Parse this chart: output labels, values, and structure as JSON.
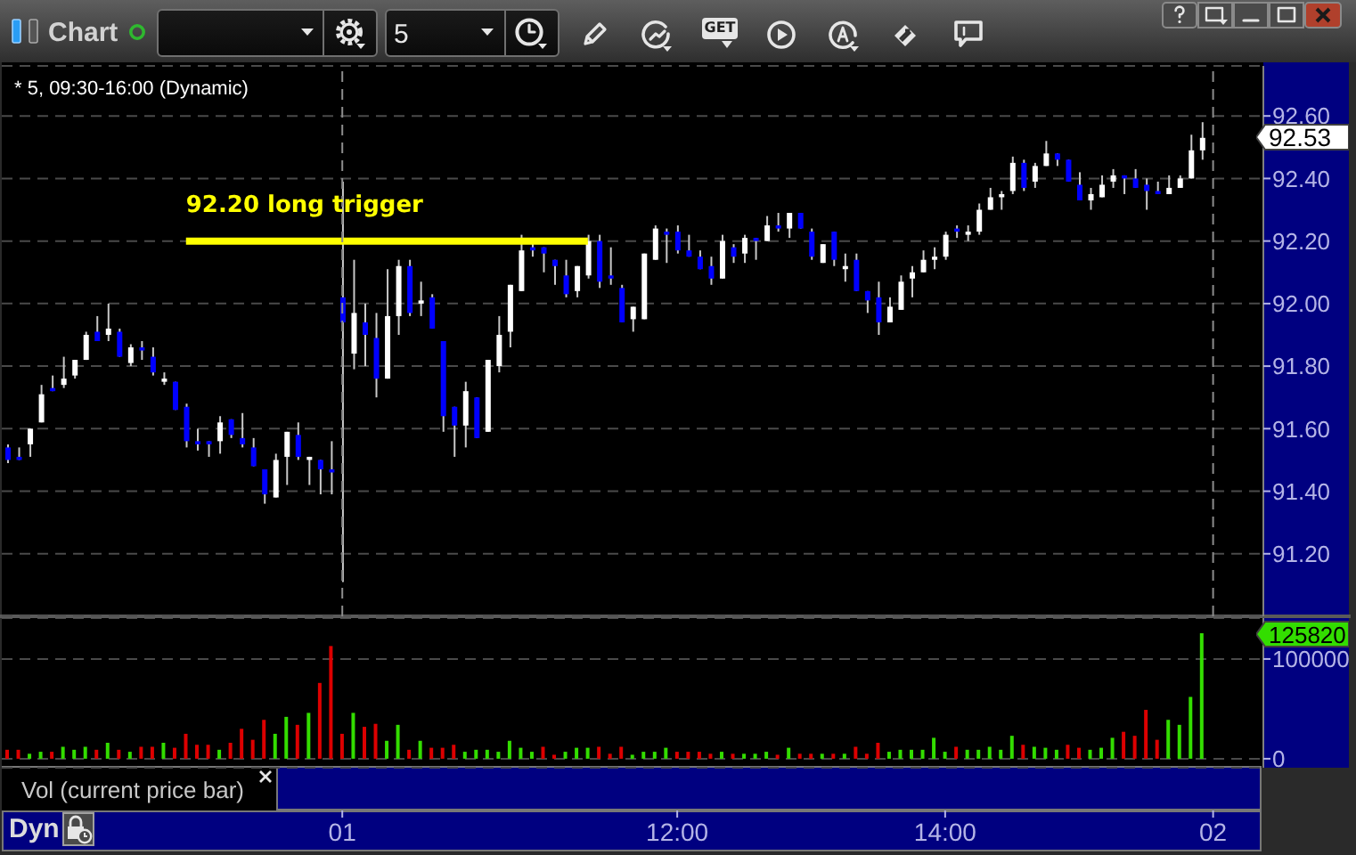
{
  "chart_data": [
    {
      "type": "candlestick",
      "title": "* 5, 09:30-16:00 (Dynamic)",
      "categories": [
        null,
        null,
        null,
        null,
        null,
        null,
        null,
        null,
        null,
        null,
        null,
        null,
        null,
        null,
        null,
        null,
        null,
        null,
        null,
        null,
        null,
        null,
        null,
        null,
        null,
        null,
        null,
        null,
        null,
        null,
        "01",
        null,
        null,
        null,
        null,
        null,
        null,
        null,
        null,
        null,
        null,
        null,
        null,
        null,
        null,
        null,
        null,
        null,
        null,
        null,
        null,
        null,
        null,
        null,
        null,
        null,
        null,
        null,
        null,
        null,
        "12:00",
        null,
        null,
        null,
        null,
        null,
        null,
        null,
        null,
        null,
        null,
        null,
        null,
        null,
        null,
        null,
        null,
        null,
        null,
        null,
        null,
        null,
        null,
        null,
        "14:00",
        null,
        null,
        null,
        null,
        null,
        null,
        null,
        null,
        null,
        null,
        null,
        null,
        null,
        null,
        null,
        null,
        null,
        null,
        null,
        null,
        null,
        null,
        null,
        "02",
        null,
        null,
        null,
        null
      ],
      "ohlc": [
        [
          91.54,
          91.55,
          91.49,
          91.5
        ],
        [
          91.51,
          91.54,
          91.5,
          91.5
        ],
        [
          91.55,
          91.6,
          91.51,
          91.6
        ],
        [
          91.62,
          91.74,
          91.62,
          91.71
        ],
        [
          91.73,
          91.77,
          91.72,
          91.72
        ],
        [
          91.74,
          91.83,
          91.73,
          91.76
        ],
        [
          91.77,
          91.82,
          91.76,
          91.82
        ],
        [
          91.82,
          91.91,
          91.82,
          91.9
        ],
        [
          91.91,
          91.96,
          91.88,
          91.88
        ],
        [
          91.9,
          92.0,
          91.88,
          91.92
        ],
        [
          91.91,
          91.92,
          91.83,
          91.83
        ],
        [
          91.81,
          91.87,
          91.8,
          91.86
        ],
        [
          91.86,
          91.88,
          91.82,
          91.85
        ],
        [
          91.83,
          91.86,
          91.77,
          91.78
        ],
        [
          91.75,
          91.78,
          91.74,
          91.76
        ],
        [
          91.75,
          91.75,
          91.66,
          91.66
        ],
        [
          91.67,
          91.68,
          91.54,
          91.56
        ],
        [
          91.56,
          91.6,
          91.53,
          91.55
        ],
        [
          91.56,
          91.56,
          91.51,
          91.55
        ],
        [
          91.56,
          91.64,
          91.52,
          91.62
        ],
        [
          91.63,
          91.63,
          91.57,
          91.58
        ],
        [
          91.57,
          91.65,
          91.54,
          91.55
        ],
        [
          91.54,
          91.57,
          91.48,
          91.48
        ],
        [
          91.47,
          91.47,
          91.36,
          91.39
        ],
        [
          91.38,
          91.52,
          91.38,
          91.5
        ],
        [
          91.51,
          91.59,
          91.42,
          91.59
        ],
        [
          91.58,
          91.62,
          91.5,
          91.51
        ],
        [
          91.5,
          91.51,
          91.42,
          91.51
        ],
        [
          91.5,
          91.5,
          91.39,
          91.47
        ],
        [
          91.47,
          91.56,
          91.39,
          91.46
        ],
        [
          92.02,
          92.39,
          91.11,
          91.94
        ],
        [
          91.84,
          92.14,
          91.79,
          91.97
        ],
        [
          91.94,
          92.0,
          91.8,
          91.9
        ],
        [
          91.89,
          91.97,
          91.7,
          91.76
        ],
        [
          91.76,
          92.11,
          91.76,
          91.96
        ],
        [
          91.96,
          92.14,
          91.9,
          92.12
        ],
        [
          92.12,
          92.14,
          91.96,
          91.97
        ],
        [
          92.0,
          92.07,
          91.96,
          92.01
        ],
        [
          92.02,
          92.03,
          91.92,
          91.92
        ],
        [
          91.88,
          91.88,
          91.59,
          91.64
        ],
        [
          91.67,
          91.67,
          91.51,
          91.61
        ],
        [
          91.61,
          91.75,
          91.54,
          91.72
        ],
        [
          91.7,
          91.7,
          91.57,
          91.57
        ],
        [
          91.59,
          91.82,
          91.59,
          91.82
        ],
        [
          91.8,
          91.96,
          91.78,
          91.9
        ],
        [
          91.91,
          92.06,
          91.86,
          92.06
        ],
        [
          92.04,
          92.22,
          92.04,
          92.17
        ],
        [
          92.18,
          92.2,
          92.15,
          92.17
        ],
        [
          92.18,
          92.18,
          92.1,
          92.16
        ],
        [
          92.14,
          92.14,
          92.06,
          92.12
        ],
        [
          92.09,
          92.14,
          92.02,
          92.03
        ],
        [
          92.04,
          92.12,
          92.02,
          92.12
        ],
        [
          92.09,
          92.22,
          92.08,
          92.2
        ],
        [
          92.2,
          92.22,
          92.05,
          92.07
        ],
        [
          92.09,
          92.18,
          92.06,
          92.08
        ],
        [
          92.05,
          92.06,
          91.94,
          91.94
        ],
        [
          91.95,
          91.99,
          91.91,
          91.99
        ],
        [
          91.95,
          92.16,
          91.95,
          92.16
        ],
        [
          92.14,
          92.25,
          92.14,
          92.24
        ],
        [
          92.23,
          92.24,
          92.13,
          92.22
        ],
        [
          92.23,
          92.25,
          92.16,
          92.17
        ],
        [
          92.17,
          92.22,
          92.15,
          92.15
        ],
        [
          92.15,
          92.17,
          92.11,
          92.11
        ],
        [
          92.12,
          92.15,
          92.06,
          92.08
        ],
        [
          92.08,
          92.22,
          92.08,
          92.2
        ],
        [
          92.18,
          92.19,
          92.13,
          92.15
        ],
        [
          92.16,
          92.22,
          92.13,
          92.21
        ],
        [
          92.21,
          92.21,
          92.14,
          92.2
        ],
        [
          92.2,
          92.28,
          92.2,
          92.25
        ],
        [
          92.25,
          92.29,
          92.23,
          92.24
        ],
        [
          92.24,
          92.29,
          92.21,
          92.29
        ],
        [
          92.29,
          92.29,
          92.24,
          92.24
        ],
        [
          92.23,
          92.24,
          92.14,
          92.15
        ],
        [
          92.13,
          92.19,
          92.13,
          92.19
        ],
        [
          92.23,
          92.23,
          92.12,
          92.14
        ],
        [
          92.11,
          92.16,
          92.07,
          92.12
        ],
        [
          92.14,
          92.16,
          92.04,
          92.04
        ],
        [
          92.04,
          92.04,
          91.97,
          92.01
        ],
        [
          92.02,
          92.07,
          91.9,
          91.94
        ],
        [
          91.94,
          92.02,
          91.94,
          91.99
        ],
        [
          91.98,
          92.09,
          91.98,
          92.07
        ],
        [
          92.08,
          92.12,
          92.02,
          92.1
        ],
        [
          92.1,
          92.17,
          92.1,
          92.14
        ],
        [
          92.14,
          92.18,
          92.11,
          92.15
        ],
        [
          92.15,
          92.23,
          92.14,
          92.22
        ],
        [
          92.24,
          92.25,
          92.21,
          92.23
        ],
        [
          92.22,
          92.25,
          92.2,
          92.23
        ],
        [
          92.23,
          92.32,
          92.22,
          92.3
        ],
        [
          92.3,
          92.37,
          92.3,
          92.34
        ],
        [
          92.34,
          92.36,
          92.3,
          92.35
        ],
        [
          92.36,
          92.47,
          92.35,
          92.45
        ],
        [
          92.45,
          92.46,
          92.36,
          92.37
        ],
        [
          92.39,
          92.45,
          92.37,
          92.44
        ],
        [
          92.44,
          92.52,
          92.44,
          92.48
        ],
        [
          92.48,
          92.48,
          92.44,
          92.46
        ],
        [
          92.46,
          92.46,
          92.39,
          92.39
        ],
        [
          92.38,
          92.42,
          92.33,
          92.33
        ],
        [
          92.33,
          92.37,
          92.3,
          92.35
        ],
        [
          92.34,
          92.41,
          92.34,
          92.38
        ],
        [
          92.39,
          92.43,
          92.37,
          92.41
        ],
        [
          92.41,
          92.41,
          92.35,
          92.4
        ],
        [
          92.4,
          92.43,
          92.37,
          92.37
        ],
        [
          92.38,
          92.4,
          92.3,
          92.36
        ],
        [
          92.36,
          92.39,
          92.35,
          92.35
        ],
        [
          92.35,
          92.41,
          92.35,
          92.37
        ],
        [
          92.37,
          92.41,
          92.37,
          92.4
        ],
        [
          92.4,
          92.54,
          92.4,
          92.49
        ],
        [
          92.49,
          92.58,
          92.46,
          92.53
        ],
        null,
        null,
        null,
        null,
        null
      ],
      "colors": [
        "#0000ff",
        "#0000ff",
        "#ffffff",
        "#ffffff",
        "#0000ff",
        "#ffffff",
        "#ffffff",
        "#ffffff",
        "#0000ff",
        "#ffffff",
        "#0000ff",
        "#ffffff",
        "#0000ff",
        "#0000ff",
        "#ffffff",
        "#0000ff",
        "#0000ff",
        "#0000ff",
        "#0000ff",
        "#ffffff",
        "#0000ff",
        "#0000ff",
        "#0000ff",
        "#0000ff",
        "#ffffff",
        "#ffffff",
        "#0000ff",
        "#ffffff",
        "#0000ff",
        "#0000ff",
        "#0000ff",
        "#ffffff",
        "#0000ff",
        "#0000ff",
        "#ffffff",
        "#ffffff",
        "#0000ff",
        "#ffffff",
        "#0000ff",
        "#0000ff",
        "#0000ff",
        "#ffffff",
        "#0000ff",
        "#ffffff",
        "#ffffff",
        "#ffffff",
        "#ffffff",
        "#0000ff",
        "#0000ff",
        "#0000ff",
        "#0000ff",
        "#ffffff",
        "#ffffff",
        "#0000ff",
        "#0000ff",
        "#0000ff",
        "#ffffff",
        "#ffffff",
        "#ffffff",
        "#0000ff",
        "#0000ff",
        "#0000ff",
        "#0000ff",
        "#0000ff",
        "#ffffff",
        "#0000ff",
        "#ffffff",
        "#0000ff",
        "#ffffff",
        "#0000ff",
        "#ffffff",
        "#0000ff",
        "#0000ff",
        "#ffffff",
        "#0000ff",
        "#ffffff",
        "#0000ff",
        "#0000ff",
        "#0000ff",
        "#ffffff",
        "#ffffff",
        "#ffffff",
        "#ffffff",
        "#ffffff",
        "#ffffff",
        "#0000ff",
        "#ffffff",
        "#ffffff",
        "#ffffff",
        "#ffffff",
        "#ffffff",
        "#0000ff",
        "#ffffff",
        "#ffffff",
        "#0000ff",
        "#0000ff",
        "#0000ff",
        "#ffffff",
        "#ffffff",
        "#ffffff",
        "#0000ff",
        "#0000ff",
        "#0000ff",
        "#0000ff",
        "#ffffff",
        "#ffffff",
        "#ffffff",
        "#ffffff",
        null,
        null,
        null,
        null,
        null
      ],
      "ylim": [
        91.0,
        92.76
      ],
      "yticks": [
        {
          "value": 91.2,
          "label": "91.20"
        },
        {
          "value": 91.4,
          "label": "91.40"
        },
        {
          "value": 91.6,
          "label": "91.60"
        },
        {
          "value": 91.8,
          "label": "91.80"
        },
        {
          "value": 92.0,
          "label": "92.00"
        },
        {
          "value": 92.2,
          "label": "92.20"
        },
        {
          "value": 92.4,
          "label": "92.40"
        },
        {
          "value": 92.6,
          "label": "92.60"
        }
      ],
      "grid": "y",
      "tick_labels": "y",
      "ref_lines": [
        {
          "axis": "y",
          "value": 92.2,
          "label": "92.20 long trigger",
          "color": "#ffff00"
        },
        {
          "axis": "x",
          "value": "01",
          "color": "#8c8c8c",
          "line_style": "dashed"
        },
        {
          "axis": "x",
          "value": "02",
          "color": "#8c8c8c",
          "line_style": "dashed"
        }
      ],
      "annotations": [
        "92.53",
        "Chart",
        "5",
        "GET"
      ]
    },
    {
      "type": "bar",
      "title": "Vol (current price bar)",
      "categories": [
        null,
        null,
        null,
        null,
        null,
        null,
        null,
        null,
        null,
        null,
        null,
        null,
        null,
        null,
        null,
        null,
        null,
        null,
        null,
        null,
        null,
        null,
        null,
        null,
        null,
        null,
        null,
        null,
        null,
        null,
        "01",
        null,
        null,
        null,
        null,
        null,
        null,
        null,
        null,
        null,
        null,
        null,
        null,
        null,
        null,
        null,
        null,
        null,
        null,
        null,
        null,
        null,
        null,
        null,
        null,
        null,
        null,
        null,
        null,
        null,
        "12:00",
        null,
        null,
        null,
        null,
        null,
        null,
        null,
        null,
        null,
        null,
        null,
        null,
        null,
        null,
        null,
        null,
        null,
        null,
        null,
        null,
        null,
        null,
        null,
        "14:00",
        null,
        null,
        null,
        null,
        null,
        null,
        null,
        null,
        null,
        null,
        null,
        null,
        null,
        null,
        null,
        null,
        null,
        null,
        null,
        null,
        null,
        null,
        null,
        "02",
        null,
        null,
        null,
        null
      ],
      "values": [
        9000,
        9000,
        5000,
        7000,
        7000,
        12000,
        9000,
        12000,
        9000,
        16000,
        9000,
        7000,
        12000,
        12000,
        16000,
        11000,
        25000,
        14000,
        14000,
        9000,
        16000,
        30000,
        19000,
        39000,
        25000,
        42000,
        34000,
        46000,
        76000,
        113000,
        25000,
        46000,
        32000,
        35000,
        18000,
        34000,
        9000,
        18000,
        11000,
        11000,
        14000,
        7000,
        9000,
        9000,
        7000,
        18000,
        11000,
        7000,
        12000,
        4000,
        7000,
        11000,
        11000,
        12000,
        5000,
        12000,
        4000,
        7000,
        7000,
        11000,
        7000,
        7000,
        7000,
        5000,
        7000,
        5000,
        5000,
        5000,
        7000,
        4000,
        11000,
        5000,
        5000,
        5000,
        5000,
        5000,
        12000,
        5000,
        16000,
        7000,
        9000,
        9000,
        9000,
        21000,
        7000,
        12000,
        9000,
        9000,
        12000,
        9000,
        23000,
        14000,
        12000,
        11000,
        9000,
        14000,
        11000,
        9000,
        11000,
        21000,
        27000,
        23000,
        49000,
        19000,
        39000,
        34000,
        62000,
        125820,
        null,
        null,
        null,
        null,
        null
      ],
      "colors": [
        "#dd0000",
        "#dd0000",
        "#33dd00",
        "#33dd00",
        "#dd0000",
        "#33dd00",
        "#33dd00",
        "#33dd00",
        "#dd0000",
        "#33dd00",
        "#dd0000",
        "#33dd00",
        "#dd0000",
        "#dd0000",
        "#33dd00",
        "#dd0000",
        "#dd0000",
        "#dd0000",
        "#dd0000",
        "#33dd00",
        "#dd0000",
        "#dd0000",
        "#dd0000",
        "#dd0000",
        "#33dd00",
        "#33dd00",
        "#dd0000",
        "#33dd00",
        "#dd0000",
        "#dd0000",
        "#dd0000",
        "#33dd00",
        "#dd0000",
        "#dd0000",
        "#33dd00",
        "#33dd00",
        "#dd0000",
        "#33dd00",
        "#dd0000",
        "#dd0000",
        "#dd0000",
        "#33dd00",
        "#33dd00",
        "#33dd00",
        "#33dd00",
        "#33dd00",
        "#33dd00",
        "#33dd00",
        "#dd0000",
        "#dd0000",
        "#33dd00",
        "#33dd00",
        "#33dd00",
        "#dd0000",
        "#dd0000",
        "#dd0000",
        "#33dd00",
        "#33dd00",
        "#33dd00",
        "#33dd00",
        "#dd0000",
        "#dd0000",
        "#dd0000",
        "#dd0000",
        "#33dd00",
        "#dd0000",
        "#33dd00",
        "#33dd00",
        "#33dd00",
        "#dd0000",
        "#33dd00",
        "#dd0000",
        "#dd0000",
        "#33dd00",
        "#dd0000",
        "#33dd00",
        "#dd0000",
        "#dd0000",
        "#dd0000",
        "#33dd00",
        "#33dd00",
        "#33dd00",
        "#33dd00",
        "#33dd00",
        "#33dd00",
        "#dd0000",
        "#33dd00",
        "#33dd00",
        "#33dd00",
        "#33dd00",
        "#33dd00",
        "#dd0000",
        "#33dd00",
        "#33dd00",
        "#33dd00",
        "#dd0000",
        "#dd0000",
        "#33dd00",
        "#33dd00",
        "#33dd00",
        "#dd0000",
        "#dd0000",
        "#dd0000",
        "#dd0000",
        "#33dd00",
        "#33dd00",
        "#33dd00",
        "#33dd00",
        null,
        null,
        null,
        null,
        null
      ],
      "ylim": [
        -9000,
        141000
      ],
      "yticks": [
        0,
        100000
      ],
      "grid": "y",
      "annotations": [
        "125820",
        "Dyn"
      ]
    }
  ]
}
